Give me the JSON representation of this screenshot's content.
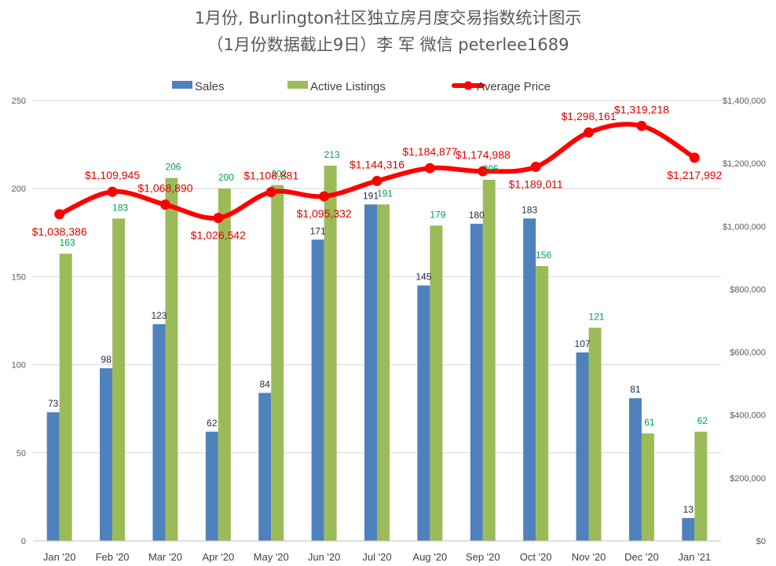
{
  "chart_data": {
    "type": "bar",
    "title": "1月份, Burlington社区独立房月度交易指数统计图示",
    "subtitle": "（1月份数据截止9日）李 军  微信  peterlee1689",
    "categories": [
      "Jan '20",
      "Feb '20",
      "Mar '20",
      "Apr '20",
      "May '20",
      "Jun '20",
      "Jul '20",
      "Aug '20",
      "Sep '20",
      "Oct '20",
      "Nov '20",
      "Dec '20",
      "Jan '21"
    ],
    "series": [
      {
        "name": "Sales",
        "type": "bar",
        "axis": "left",
        "color": "#4f81bd",
        "values": [
          73,
          98,
          123,
          62,
          84,
          171,
          191,
          145,
          180,
          183,
          107,
          81,
          13
        ],
        "labels": [
          "73",
          "98",
          "123",
          "62",
          "84",
          "171",
          "191",
          "145",
          "180",
          "183",
          "107",
          "81",
          "13"
        ]
      },
      {
        "name": "Active Listings",
        "type": "bar",
        "axis": "left",
        "color": "#9bbb59",
        "values": [
          163,
          183,
          206,
          200,
          202,
          213,
          191,
          179,
          205,
          156,
          121,
          61,
          62
        ],
        "labels": [
          "163",
          "183",
          "206",
          "200",
          "202",
          "213",
          "191",
          "179",
          "205",
          "156",
          "121",
          "61",
          "62"
        ]
      },
      {
        "name": "Average Price",
        "type": "line",
        "axis": "right",
        "color": "#ff0000",
        "values": [
          1038386,
          1109945,
          1068890,
          1026542,
          1108881,
          1095332,
          1144316,
          1184877,
          1174988,
          1189011,
          1298161,
          1319218,
          1217992
        ],
        "labels": [
          "$1,038,386",
          "$1,109,945",
          "$1,068,890",
          "$1,026,542",
          "$1,108,881",
          "$1,095,332",
          "$1,144,316",
          "$1,184,877",
          "$1,174,988",
          "$1,189,011",
          "$1,298,161",
          "$1,319,218",
          "$1,217,992"
        ]
      }
    ],
    "y_left": {
      "min": 0,
      "max": 250,
      "ticks": [
        "0",
        "50",
        "100",
        "150",
        "200",
        "250"
      ]
    },
    "y_right": {
      "min": 0,
      "max": 1400000,
      "ticks": [
        "$0",
        "$200,000",
        "$400,000",
        "$600,000",
        "$800,000",
        "$1,000,000",
        "$1,200,000",
        "$1,400,000"
      ]
    },
    "grid": true,
    "legend_position": "top"
  }
}
